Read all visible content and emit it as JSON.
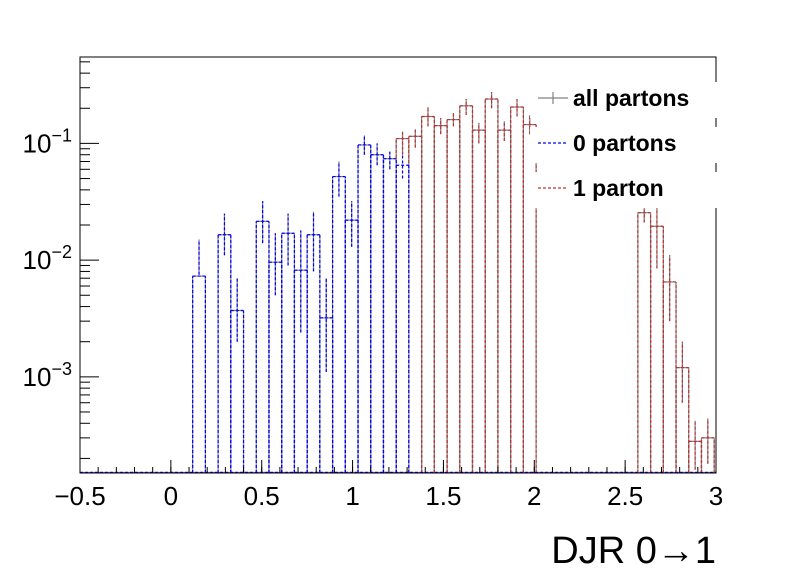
{
  "chart_data": {
    "type": "histogram",
    "xlabel": "DJR 0→1",
    "ylabel": "",
    "title": "",
    "xlim": [
      -0.5,
      3.0
    ],
    "ylim": [
      0.00015,
      0.55
    ],
    "yscale": "log",
    "grid": false,
    "legend_position": "top-right",
    "x_ticks": [
      "−0.5",
      "0",
      "0.5",
      "1",
      "1.5",
      "2",
      "2.5",
      "3"
    ],
    "y_ticks": [
      {
        "value": 0.001,
        "base": "10",
        "exp": "−3"
      },
      {
        "value": 0.01,
        "base": "10",
        "exp": "−2"
      },
      {
        "value": 0.1,
        "base": "10",
        "exp": "−1"
      }
    ],
    "bin_width": 0.07,
    "series": [
      {
        "name": "all partons",
        "color": "#808080",
        "style": "solid",
        "bins": [
          [
            0.12,
            0.0073,
            0.0075,
            0.015
          ],
          [
            0.26,
            0.0165,
            0.011,
            0.025
          ],
          [
            0.33,
            0.0037,
            0.002,
            0.007
          ],
          [
            0.47,
            0.0215,
            0.014,
            0.032
          ],
          [
            0.54,
            0.0096,
            0.005,
            0.017
          ],
          [
            0.61,
            0.017,
            0.009,
            0.025
          ],
          [
            0.68,
            0.0082,
            0.0024,
            0.018
          ],
          [
            0.75,
            0.0165,
            0.008,
            0.026
          ],
          [
            0.82,
            0.0032,
            0.0011,
            0.007
          ],
          [
            0.89,
            0.052,
            0.035,
            0.07
          ],
          [
            0.96,
            0.022,
            0.013,
            0.032
          ],
          [
            1.03,
            0.097,
            0.08,
            0.117
          ],
          [
            1.1,
            0.08,
            0.065,
            0.1
          ],
          [
            1.17,
            0.074,
            0.06,
            0.085
          ],
          [
            1.24,
            0.11,
            0.08,
            0.126
          ],
          [
            1.31,
            0.115,
            0.092,
            0.132
          ],
          [
            1.38,
            0.17,
            0.14,
            0.205
          ],
          [
            1.45,
            0.142,
            0.12,
            0.165
          ],
          [
            1.52,
            0.16,
            0.14,
            0.182
          ],
          [
            1.59,
            0.21,
            0.175,
            0.24
          ],
          [
            1.66,
            0.13,
            0.1,
            0.15
          ],
          [
            1.73,
            0.24,
            0.2,
            0.275
          ],
          [
            1.8,
            0.13,
            0.105,
            0.155
          ],
          [
            1.87,
            0.205,
            0.17,
            0.24
          ],
          [
            1.94,
            0.145,
            0.12,
            0.175
          ],
          [
            2.57,
            0.0255,
            0.021,
            0.031
          ],
          [
            2.64,
            0.0195,
            0.0085,
            0.031
          ],
          [
            2.71,
            0.0065,
            0.003,
            0.011
          ],
          [
            2.78,
            0.0012,
            0.0006,
            0.002
          ],
          [
            2.85,
            0.00028,
            0.00016,
            0.00042
          ],
          [
            2.92,
            0.0003,
            0.00018,
            0.00044
          ]
        ]
      },
      {
        "name": "0 partons",
        "color": "#0000ff",
        "style": "dashed",
        "bins": [
          [
            0.12,
            0.0073,
            0.0075,
            0.015
          ],
          [
            0.26,
            0.0165,
            0.011,
            0.025
          ],
          [
            0.33,
            0.0037,
            0.002,
            0.007
          ],
          [
            0.47,
            0.0215,
            0.014,
            0.032
          ],
          [
            0.54,
            0.0096,
            0.005,
            0.017
          ],
          [
            0.61,
            0.017,
            0.009,
            0.025
          ],
          [
            0.68,
            0.0082,
            0.0024,
            0.018
          ],
          [
            0.75,
            0.0165,
            0.008,
            0.026
          ],
          [
            0.82,
            0.0032,
            0.0011,
            0.007
          ],
          [
            0.89,
            0.052,
            0.035,
            0.07
          ],
          [
            0.96,
            0.022,
            0.013,
            0.032
          ],
          [
            1.03,
            0.097,
            0.08,
            0.117
          ],
          [
            1.1,
            0.08,
            0.065,
            0.1
          ],
          [
            1.17,
            0.074,
            0.06,
            0.085
          ],
          [
            1.24,
            0.065,
            0.05,
            0.08
          ]
        ]
      },
      {
        "name": "1 parton",
        "color": "#bb3333",
        "style": "dashed",
        "bins": [
          [
            1.24,
            0.11,
            0.08,
            0.126
          ],
          [
            1.31,
            0.115,
            0.092,
            0.132
          ],
          [
            1.38,
            0.17,
            0.14,
            0.205
          ],
          [
            1.45,
            0.142,
            0.12,
            0.165
          ],
          [
            1.52,
            0.16,
            0.14,
            0.182
          ],
          [
            1.59,
            0.21,
            0.175,
            0.24
          ],
          [
            1.66,
            0.13,
            0.1,
            0.15
          ],
          [
            1.73,
            0.24,
            0.2,
            0.275
          ],
          [
            1.8,
            0.13,
            0.105,
            0.155
          ],
          [
            1.87,
            0.205,
            0.17,
            0.24
          ],
          [
            1.94,
            0.145,
            0.12,
            0.175
          ],
          [
            2.57,
            0.0255,
            0.021,
            0.031
          ],
          [
            2.64,
            0.0195,
            0.0085,
            0.031
          ],
          [
            2.71,
            0.0065,
            0.003,
            0.011
          ],
          [
            2.78,
            0.0012,
            0.0006,
            0.002
          ],
          [
            2.85,
            0.00028,
            0.00016,
            0.00042
          ],
          [
            2.92,
            0.0003,
            0.00018,
            0.00044
          ]
        ]
      }
    ]
  }
}
